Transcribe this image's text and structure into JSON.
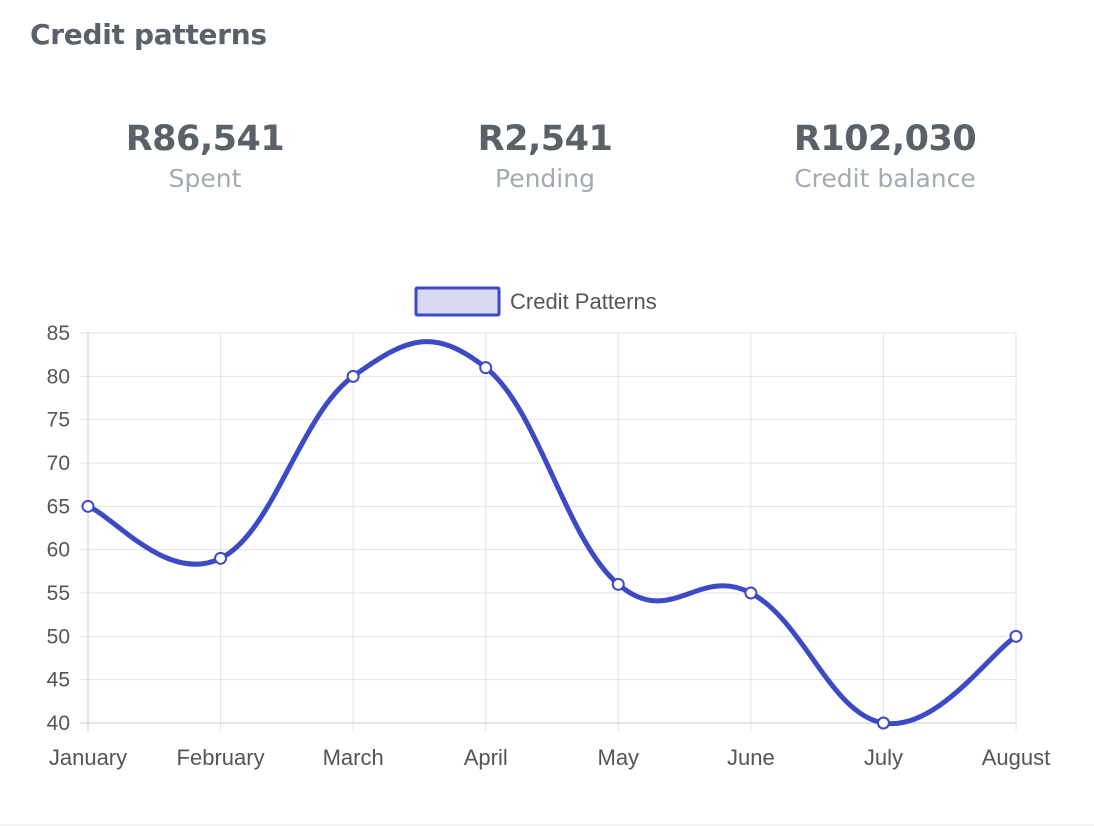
{
  "card": {
    "title": "Credit patterns"
  },
  "stats": [
    {
      "value": "R86,541",
      "label": "Spent"
    },
    {
      "value": "R2,541",
      "label": "Pending"
    },
    {
      "value": "R102,030",
      "label": "Credit balance"
    }
  ],
  "chart_data": {
    "type": "line",
    "categories": [
      "January",
      "February",
      "March",
      "April",
      "May",
      "June",
      "July",
      "August"
    ],
    "series": [
      {
        "name": "Credit Patterns",
        "values": [
          65,
          59,
          80,
          81,
          56,
          55,
          40,
          50
        ]
      }
    ],
    "ylim": [
      40,
      85
    ],
    "yticks": [
      85,
      80,
      75,
      70,
      65,
      60,
      55,
      50,
      45,
      40
    ],
    "grid": true,
    "legend_position": "top-center",
    "curve": "smooth",
    "colors": {
      "line": "#3d4ac6",
      "legend_fill": "#d8daf3",
      "grid": "#e3e3e3",
      "tick": "#555555",
      "point_fill": "#ffffff"
    }
  }
}
